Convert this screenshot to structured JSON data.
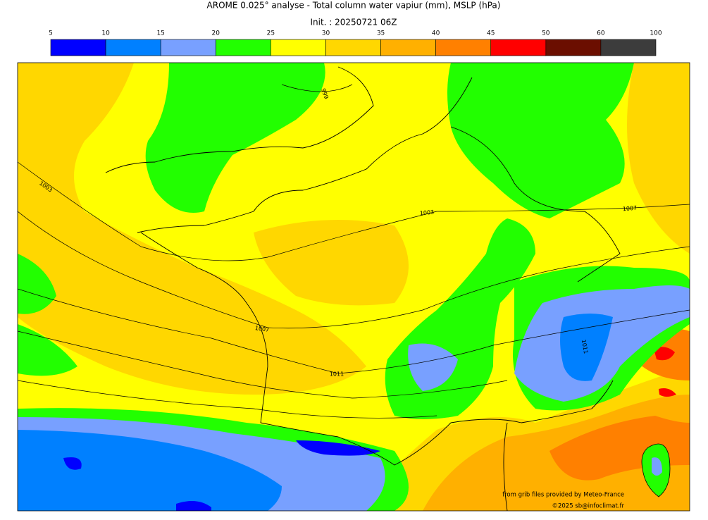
{
  "title": "AROME 0.025° analyse - Total column water vapiur (mm), MSLP (hPa)",
  "init": "Init. : 20250721 06Z",
  "colorbar": {
    "ticks": [
      5,
      10,
      15,
      20,
      25,
      30,
      35,
      40,
      45,
      50,
      60,
      100
    ],
    "colors": [
      "#0000ff",
      "#0080ff",
      "#78a0ff",
      "#22ff00",
      "#ffff00",
      "#ffd700",
      "#ffb000",
      "#ff8000",
      "#ff0000",
      "#6b0e00",
      "#3c3c3c"
    ]
  },
  "isobar_labels": [
    999,
    1003,
    1003,
    1007,
    1007,
    1011,
    1011
  ],
  "credits": [
    "from grib files provided by Meteo-France",
    "©2025 sb@infoclimat.fr"
  ]
}
